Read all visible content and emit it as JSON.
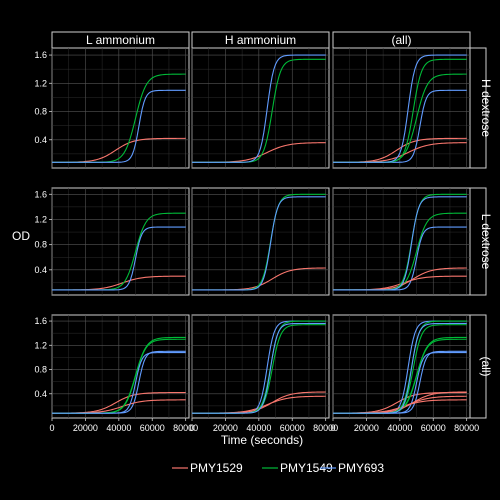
{
  "chart_data": {
    "type": "line",
    "facet": "grid",
    "xlabel": "Time (seconds)",
    "ylabel": "OD",
    "xlim": [
      0,
      82000
    ],
    "ylim": [
      0.0,
      1.7
    ],
    "x_ticks": [
      0,
      20000,
      40000,
      60000,
      80000
    ],
    "y_ticks": [
      0.4,
      0.8,
      1.2,
      1.6
    ],
    "x_tick_labels": [
      "0",
      "20000",
      "40000",
      "60000",
      "80000"
    ],
    "y_tick_labels": [
      "0.4",
      "0.8",
      "1.2",
      "1.6"
    ],
    "grid": true,
    "legend_position": "bottom",
    "col_labels": [
      "L ammonium",
      "H ammonium",
      "(all)"
    ],
    "row_labels": [
      "H dextrose",
      "L dextrose",
      "(all)"
    ],
    "series_names": [
      "PMY1529",
      "PMY1549",
      "PMY693"
    ],
    "colors": {
      "PMY1529": "#F8766D",
      "PMY1549": "#00BA38",
      "PMY693": "#619CFF"
    },
    "curves": {
      "H|L": {
        "PMY1529": {
          "y0": 0.08,
          "A": 0.42,
          "m": 38000,
          "w": 22000
        },
        "PMY1549": {
          "y0": 0.08,
          "A": 1.33,
          "m": 50000,
          "w": 13000
        },
        "PMY693": {
          "y0": 0.08,
          "A": 1.1,
          "m": 52000,
          "w": 7500
        }
      },
      "H|H": {
        "PMY1529": {
          "y0": 0.08,
          "A": 0.36,
          "m": 45000,
          "w": 25000
        },
        "PMY1549": {
          "y0": 0.08,
          "A": 1.54,
          "m": 48000,
          "w": 10000
        },
        "PMY693": {
          "y0": 0.08,
          "A": 1.6,
          "m": 45000,
          "w": 8500
        }
      },
      "L|L": {
        "PMY1529": {
          "y0": 0.08,
          "A": 0.3,
          "m": 42000,
          "w": 24000
        },
        "PMY1549": {
          "y0": 0.08,
          "A": 1.3,
          "m": 50000,
          "w": 12500
        },
        "PMY693": {
          "y0": 0.08,
          "A": 1.08,
          "m": 50000,
          "w": 7500
        }
      },
      "L|H": {
        "PMY1529": {
          "y0": 0.08,
          "A": 0.43,
          "m": 48000,
          "w": 22000
        },
        "PMY1549": {
          "y0": 0.08,
          "A": 1.6,
          "m": 47000,
          "w": 9500
        },
        "PMY693": {
          "y0": 0.08,
          "A": 1.56,
          "m": 47000,
          "w": 8500
        }
      }
    }
  },
  "legend": {
    "items": [
      {
        "label": "PMY1529",
        "color": "#F8766D"
      },
      {
        "label": "PMY1549",
        "color": "#00BA38"
      },
      {
        "label": "PMY693",
        "color": "#619CFF"
      }
    ]
  }
}
